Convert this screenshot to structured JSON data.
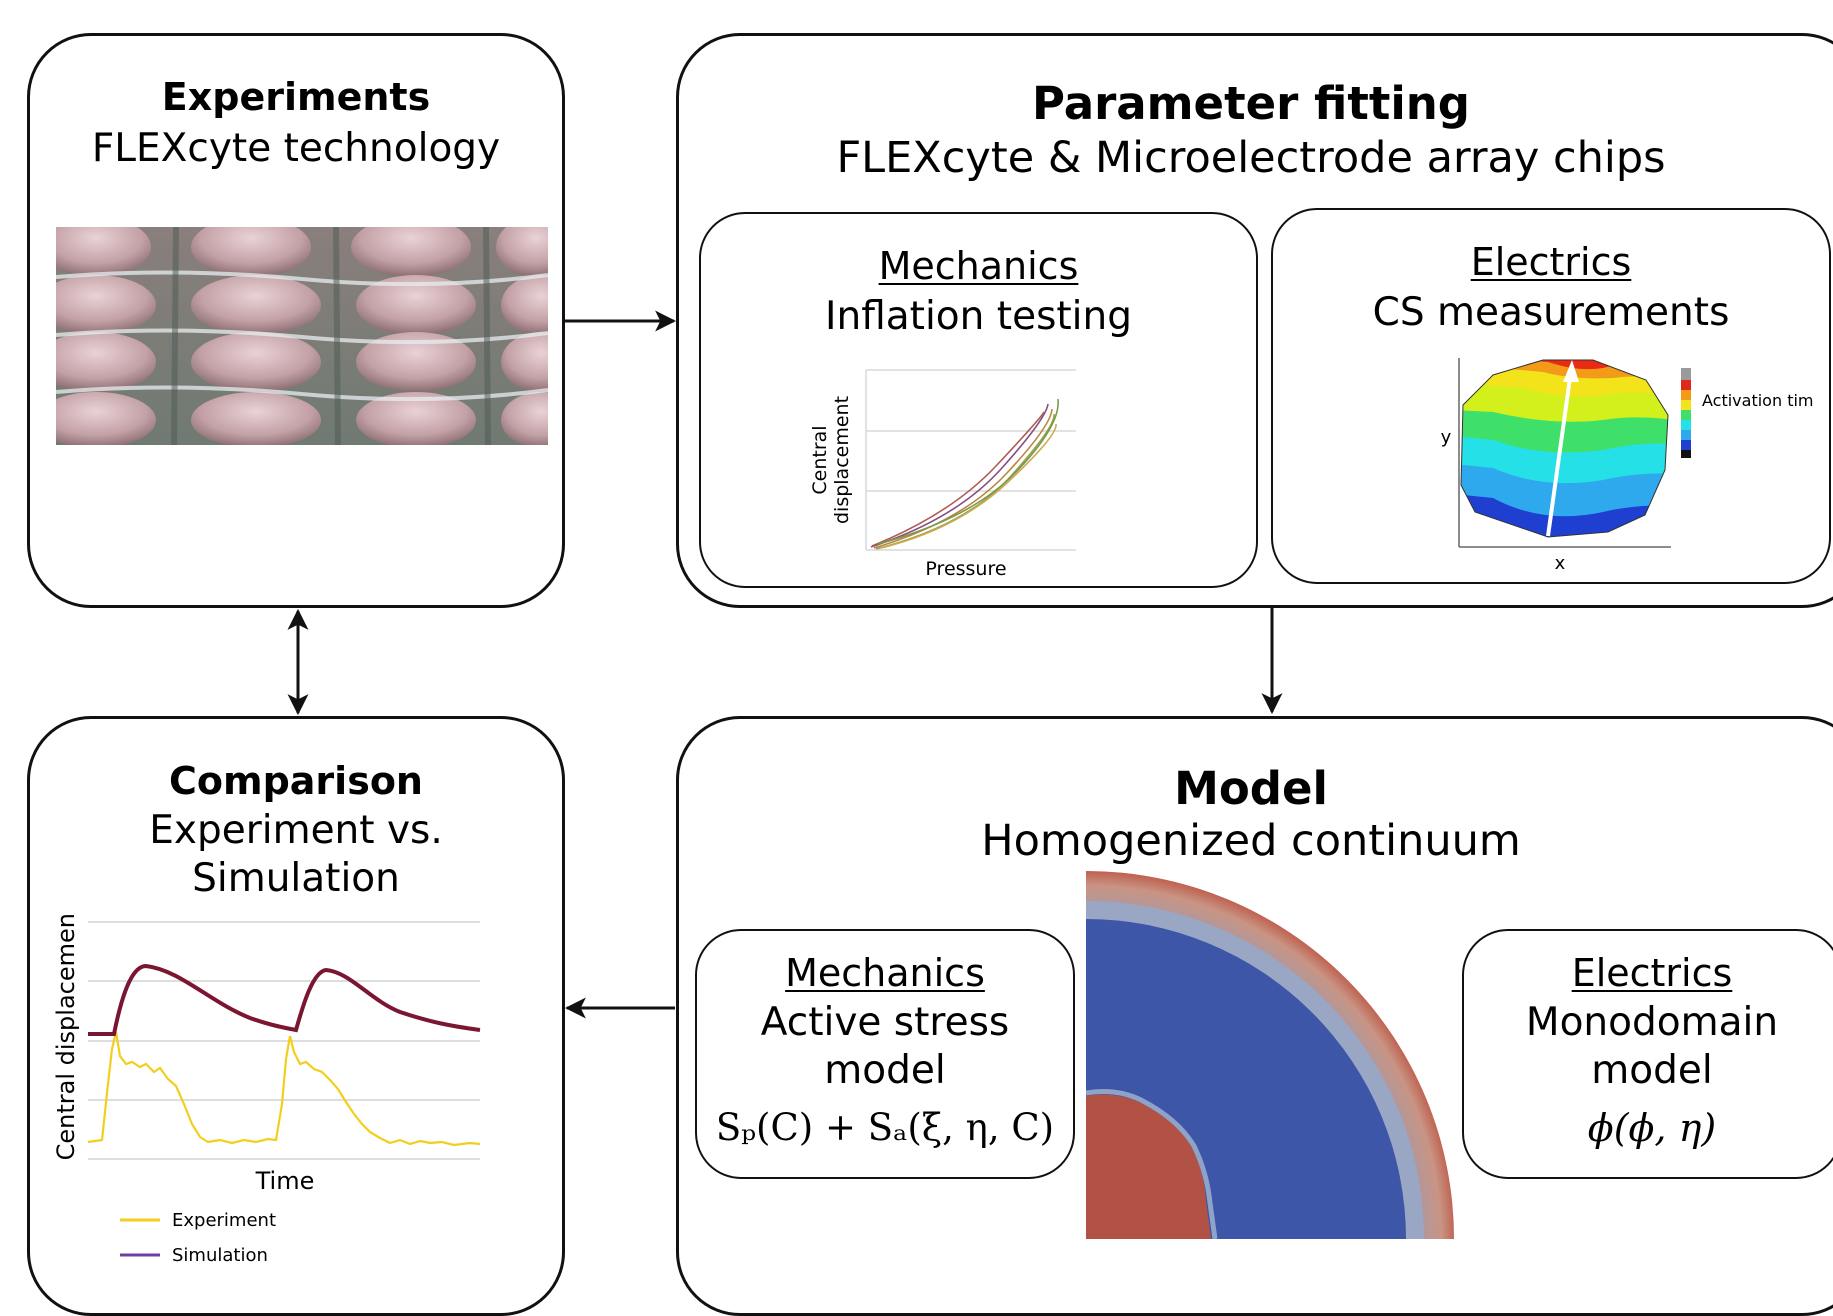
{
  "experiments": {
    "title": "Experiments",
    "subtitle": "FLEXcyte technology"
  },
  "fitting": {
    "title": "Parameter fitting",
    "subtitle": "FLEXcyte & Microelectrode array chips",
    "mechanics": {
      "heading": "Mechanics",
      "subtitle": "Inflation testing",
      "ylabel_line1": "Central",
      "ylabel_line2": "displacement",
      "xlabel": "Pressure"
    },
    "electrics": {
      "heading": "Electrics",
      "subtitle": "CS measurements",
      "legend": "Activation time",
      "xlabel": "x",
      "ylabel": "y"
    }
  },
  "comparison": {
    "title": "Comparison",
    "subtitle_line1": "Experiment vs.",
    "subtitle_line2": "Simulation",
    "chart": {
      "ylabel": "Central displacement",
      "xlabel": "Time",
      "legend": [
        "Experiment",
        "Simulation"
      ],
      "colors": {
        "experiment": "#f2cf1e",
        "simulation": "#7b1632"
      }
    }
  },
  "model": {
    "title": "Model",
    "subtitle": "Homogenized continuum",
    "mechanics": {
      "heading": "Mechanics",
      "line1": "Active stress",
      "line2": "model",
      "equation": "Sₚ(C) + Sₐ(ξ, η, C)"
    },
    "electrics": {
      "heading": "Electrics",
      "line1": "Monodomain",
      "line2": "model",
      "equation": "ϕ(ϕ, η)"
    },
    "colors": {
      "red": "#c0604f",
      "blue": "#3e56a8",
      "edge": "#caa08e"
    }
  }
}
